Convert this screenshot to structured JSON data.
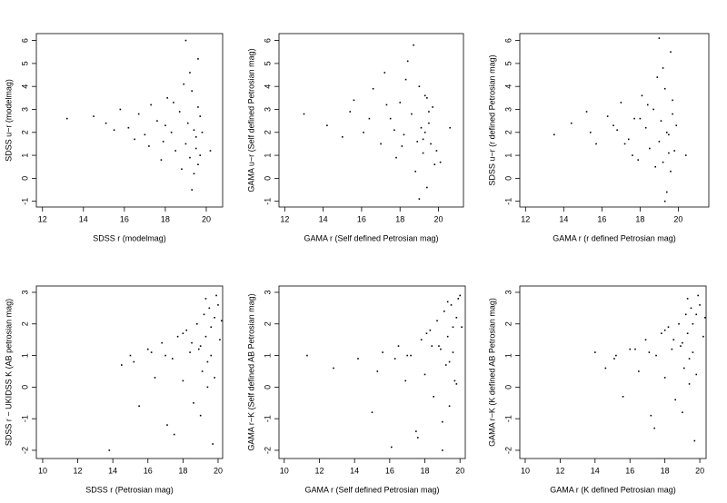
{
  "chart_data": [
    {
      "type": "scatter",
      "x_label": "SDSS r (modelmag)",
      "y_label": "SDSS u−r (modelmag)",
      "xlim": [
        11.7,
        20.8
      ],
      "ylim": [
        -1.25,
        6.3
      ],
      "xticks": [
        12,
        14,
        16,
        18,
        20
      ],
      "yticks": [
        -1,
        0,
        1,
        2,
        3,
        4,
        5,
        6
      ],
      "color": "#000000",
      "x": [
        13.2,
        14.5,
        15.1,
        15.8,
        16.2,
        16.7,
        17.0,
        17.3,
        17.6,
        17.9,
        18.1,
        18.3,
        18.5,
        18.7,
        18.9,
        19.0,
        19.1,
        19.2,
        19.3,
        19.4,
        19.5,
        19.6,
        19.6,
        19.7,
        18.8,
        19.2,
        19.5,
        18.4,
        17.8,
        19.0,
        19.4,
        19.6,
        16.5,
        18.0,
        19.3,
        19.7,
        15.5,
        17.2,
        19.8,
        20.2
      ],
      "values": [
        2.6,
        2.7,
        2.4,
        3.0,
        2.2,
        2.8,
        1.9,
        3.2,
        2.5,
        1.6,
        3.5,
        2.0,
        1.2,
        2.9,
        4.1,
        1.5,
        2.4,
        0.9,
        3.8,
        2.1,
        1.3,
        5.2,
        0.6,
        2.7,
        0.4,
        4.6,
        1.8,
        3.3,
        0.8,
        6.0,
        0.2,
        3.1,
        1.7,
        2.3,
        -0.5,
        1.0,
        2.1,
        1.4,
        2.0,
        1.2
      ]
    },
    {
      "type": "scatter",
      "x_label": "GAMA r (Self defined Petrosian mag)",
      "y_label": "GAMA u−r (Self defined Petrosian mag)",
      "xlim": [
        11.7,
        21.3
      ],
      "ylim": [
        -1.25,
        6.3
      ],
      "xticks": [
        12,
        14,
        16,
        18,
        20
      ],
      "yticks": [
        -1,
        0,
        1,
        2,
        3,
        4,
        5,
        6
      ],
      "color": "#000000",
      "x": [
        13.0,
        14.2,
        15.0,
        15.6,
        16.1,
        16.6,
        17.0,
        17.2,
        17.5,
        17.8,
        18.0,
        18.2,
        18.4,
        18.6,
        18.8,
        19.0,
        19.1,
        19.2,
        19.3,
        19.4,
        19.5,
        19.6,
        19.7,
        19.8,
        18.7,
        19.2,
        19.5,
        18.3,
        17.7,
        19.0,
        19.4,
        19.9,
        16.4,
        18.1,
        19.3,
        20.1,
        15.4,
        17.3,
        18.9,
        20.6
      ],
      "values": [
        2.8,
        2.3,
        1.8,
        3.4,
        2.0,
        3.9,
        1.5,
        4.6,
        2.6,
        0.9,
        3.3,
        1.9,
        5.1,
        2.8,
        0.3,
        4.0,
        2.2,
        1.1,
        3.6,
        -0.4,
        2.4,
        1.5,
        3.1,
        0.6,
        5.8,
        1.7,
        2.9,
        4.3,
        2.1,
        -0.9,
        3.5,
        1.2,
        2.6,
        1.4,
        2.0,
        0.7,
        2.9,
        3.2,
        1.6,
        2.2
      ]
    },
    {
      "type": "scatter",
      "x_label": "GAMA r (r defined Petrosian mag)",
      "y_label": "SDSS u−r (r defined Petrosian mag)",
      "xlim": [
        11.7,
        21.6
      ],
      "ylim": [
        -1.25,
        6.3
      ],
      "xticks": [
        12,
        14,
        16,
        18,
        20
      ],
      "yticks": [
        -1,
        0,
        1,
        2,
        3,
        4,
        5,
        6
      ],
      "color": "#000000",
      "x": [
        13.5,
        14.4,
        15.2,
        15.7,
        16.3,
        16.8,
        17.0,
        17.4,
        17.7,
        17.9,
        18.1,
        18.3,
        18.5,
        18.7,
        18.9,
        19.0,
        19.1,
        19.2,
        19.3,
        19.4,
        19.5,
        19.6,
        19.6,
        19.7,
        18.8,
        19.2,
        19.5,
        18.4,
        17.6,
        19.0,
        19.4,
        19.7,
        16.6,
        18.0,
        19.3,
        19.8,
        15.4,
        17.2,
        19.9,
        20.4
      ],
      "values": [
        1.9,
        2.4,
        2.9,
        1.5,
        2.7,
        2.1,
        3.3,
        1.7,
        2.6,
        0.8,
        3.6,
        2.2,
        1.3,
        3.0,
        4.4,
        1.6,
        2.5,
        0.7,
        3.9,
        2.0,
        1.1,
        5.5,
        0.3,
        2.8,
        0.5,
        4.8,
        1.9,
        3.2,
        1.0,
        6.1,
        -0.6,
        3.4,
        2.3,
        2.6,
        -1.0,
        1.2,
        2.0,
        1.5,
        2.3,
        1.0
      ]
    },
    {
      "type": "scatter",
      "x_label": "SDSS r (Petrosian mag)",
      "y_label": "SDSS r − UKIDSS K (AB petrosian mag)",
      "xlim": [
        9.64,
        20.26
      ],
      "ylim": [
        -2.26,
        3.2
      ],
      "xticks": [
        10,
        12,
        14,
        16,
        18,
        20
      ],
      "yticks": [
        -2,
        -1,
        0,
        1,
        2,
        3
      ],
      "color": "#000000",
      "x": [
        13.8,
        14.5,
        15.0,
        15.5,
        16.0,
        16.4,
        16.8,
        17.1,
        17.4,
        17.7,
        18.0,
        18.2,
        18.4,
        18.6,
        18.8,
        19.0,
        19.1,
        19.2,
        19.3,
        19.4,
        19.5,
        19.6,
        19.7,
        19.8,
        20.0,
        20.1,
        18.5,
        19.0,
        19.4,
        17.0,
        18.0,
        19.6,
        16.2,
        19.3,
        19.8,
        15.2,
        17.5,
        18.9,
        19.9,
        20.2
      ],
      "values": [
        -2.0,
        0.7,
        1.0,
        -0.6,
        1.2,
        0.3,
        1.4,
        -1.2,
        0.9,
        1.6,
        0.2,
        1.8,
        1.1,
        -0.5,
        2.0,
        1.3,
        0.5,
        2.3,
        1.6,
        0.0,
        2.5,
        1.0,
        -1.8,
        2.2,
        2.6,
        1.5,
        1.4,
        -0.9,
        0.8,
        1.0,
        1.7,
        1.9,
        1.1,
        2.8,
        0.3,
        0.8,
        -1.5,
        1.2,
        2.9,
        2.1
      ]
    },
    {
      "type": "scatter",
      "x_label": "GAMA r (Self defined Petrosian mag)",
      "y_label": "GAMA r−K (Self defined AB Petrosian mag)",
      "xlim": [
        9.7,
        20.3
      ],
      "ylim": [
        -2.26,
        3.2
      ],
      "xticks": [
        10,
        12,
        14,
        16,
        18,
        20
      ],
      "yticks": [
        -2,
        -1,
        0,
        1,
        2,
        3
      ],
      "color": "#000000",
      "x": [
        11.3,
        12.8,
        14.2,
        15.0,
        15.6,
        16.1,
        16.5,
        16.9,
        17.2,
        17.5,
        17.8,
        18.0,
        18.3,
        18.5,
        18.7,
        18.9,
        19.0,
        19.1,
        19.2,
        19.3,
        19.4,
        19.5,
        19.6,
        19.7,
        19.8,
        20.0,
        18.4,
        19.0,
        19.4,
        17.0,
        18.1,
        19.6,
        16.3,
        19.3,
        19.8,
        15.3,
        17.6,
        18.8,
        19.9,
        20.1
      ],
      "values": [
        1.0,
        0.6,
        0.9,
        -0.8,
        1.1,
        -1.9,
        1.3,
        0.2,
        1.0,
        -1.4,
        1.5,
        0.4,
        1.8,
        -0.3,
        2.1,
        1.2,
        -2.0,
        2.4,
        0.7,
        1.6,
        -0.6,
        2.6,
        1.1,
        0.2,
        2.2,
        2.9,
        1.3,
        -1.1,
        0.8,
        1.0,
        1.7,
        1.9,
        0.9,
        2.7,
        0.1,
        0.5,
        -1.6,
        1.3,
        2.8,
        1.9
      ]
    },
    {
      "type": "scatter",
      "x_label": "GAMA r (K defined Petrosian mag)",
      "y_label": "GAMA r−K (K defined AB Petrosian mag)",
      "xlim": [
        9.69,
        20.36
      ],
      "ylim": [
        -2.26,
        3.2
      ],
      "xticks": [
        10,
        12,
        14,
        16,
        18,
        20
      ],
      "yticks": [
        -2,
        -1,
        0,
        1,
        2,
        3
      ],
      "color": "#000000",
      "x": [
        14.0,
        14.6,
        15.2,
        15.6,
        16.0,
        16.5,
        16.9,
        17.2,
        17.5,
        17.8,
        18.0,
        18.2,
        18.4,
        18.6,
        18.8,
        19.0,
        19.1,
        19.2,
        19.3,
        19.4,
        19.5,
        19.6,
        19.7,
        19.8,
        20.0,
        20.2,
        18.5,
        19.0,
        19.4,
        17.1,
        18.0,
        19.6,
        16.3,
        19.3,
        19.8,
        15.1,
        17.4,
        18.9,
        19.9,
        20.3
      ],
      "values": [
        1.1,
        0.6,
        1.0,
        -0.3,
        1.2,
        0.5,
        1.5,
        -0.9,
        1.0,
        1.7,
        0.3,
        1.9,
        1.2,
        -0.4,
        2.0,
        1.4,
        0.6,
        2.3,
        1.7,
        0.1,
        2.5,
        1.1,
        -1.7,
        2.3,
        2.6,
        1.6,
        1.5,
        -0.8,
        0.9,
        1.1,
        1.8,
        2.0,
        1.2,
        2.8,
        0.4,
        0.9,
        -1.3,
        1.3,
        2.9,
        2.2
      ]
    }
  ]
}
